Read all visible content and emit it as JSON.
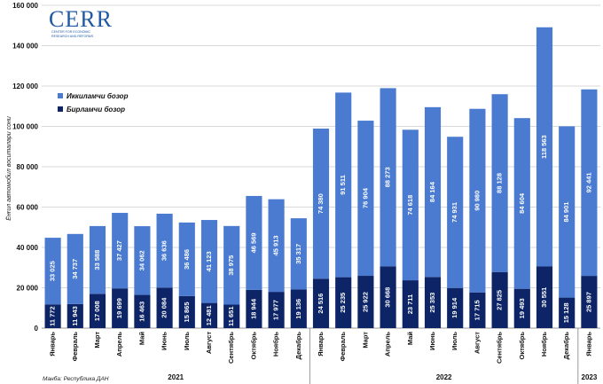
{
  "logo": {
    "text": "CERR",
    "subtitle_line1": "CENTER FOR ECONOMIC",
    "subtitle_line2": "RESEARCH AND REFORMS"
  },
  "source": "Манба: Республика ДАН",
  "colors": {
    "secondary": "#4a7bd1",
    "primary": "#0d2566",
    "grid": "#d9d9d9",
    "logo": "#1f5aa6"
  },
  "chart_data": {
    "type": "bar",
    "stacked": true,
    "title": "",
    "ylabel": "Ёнғил автомобил воситалари сони",
    "ylim": [
      0,
      160000
    ],
    "yticks": [
      0,
      20000,
      40000,
      60000,
      80000,
      100000,
      120000,
      140000,
      160000
    ],
    "ytick_labels": [
      "0",
      "20 000",
      "40 000",
      "60 000",
      "80 000",
      "100 000",
      "120 000",
      "140 000",
      "160 000"
    ],
    "grid": true,
    "legend_position": "top-left",
    "categories": [
      "Январь",
      "Февраль",
      "Март",
      "Апрель",
      "Май",
      "Июнь",
      "Июль",
      "Август",
      "Сентябрь",
      "Октябрь",
      "Ноябрь",
      "Декабрь",
      "Январь",
      "Февраль",
      "Март",
      "Апрель",
      "Май",
      "Июнь",
      "Июль",
      "Август",
      "Сентябрь",
      "Октябрь",
      "Ноябрь",
      "Декабрь",
      "Январь"
    ],
    "groups": [
      {
        "label": "2021",
        "start": 0,
        "end": 11
      },
      {
        "label": "2022",
        "start": 12,
        "end": 23
      },
      {
        "label": "2023",
        "start": 24,
        "end": 24
      }
    ],
    "series": [
      {
        "name": "Бирламчи бозор",
        "color": "#0d2566",
        "values": [
          11772,
          11943,
          17008,
          19699,
          16463,
          20084,
          15865,
          12481,
          11651,
          18944,
          17977,
          19136,
          24516,
          25235,
          25922,
          30668,
          23711,
          25353,
          19914,
          17715,
          27825,
          19493,
          30551,
          15128,
          25897
        ],
        "labels": [
          "11 772",
          "11 943",
          "17 008",
          "19 699",
          "16 463",
          "20 084",
          "15 865",
          "12 481",
          "11 651",
          "18 944",
          "17 977",
          "19 136",
          "24 516",
          "25 235",
          "25 922",
          "30 668",
          "23 711",
          "25 353",
          "19 914",
          "17 715",
          "27 825",
          "19 493",
          "30 551",
          "15 128",
          "25 897"
        ]
      },
      {
        "name": "Иккиламчи бозор",
        "color": "#4a7bd1",
        "values": [
          33025,
          34737,
          33588,
          37427,
          34062,
          36636,
          36486,
          41123,
          38975,
          46569,
          45913,
          35317,
          74380,
          91511,
          76904,
          88273,
          74618,
          84164,
          74931,
          90980,
          88128,
          84604,
          118563,
          84901,
          92441
        ],
        "labels": [
          "33 025",
          "34 737",
          "33 588",
          "37 427",
          "34 062",
          "36 636",
          "36 486",
          "41 123",
          "38 975",
          "46 569",
          "45 913",
          "35 317",
          "74 380",
          "91 511",
          "76 904",
          "88 273",
          "74 618",
          "84 164",
          "74 931",
          "90 980",
          "88 128",
          "84 604",
          "118 563",
          "84 901",
          "92 441"
        ]
      }
    ]
  }
}
